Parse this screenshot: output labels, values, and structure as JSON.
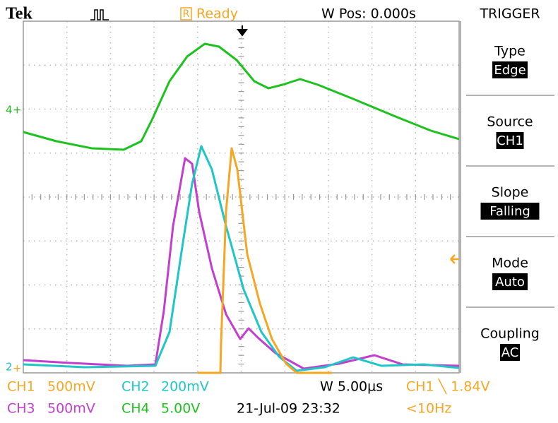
{
  "header": {
    "brand": "Tek",
    "status_flag": "R",
    "status": "Ready",
    "position": "W Pos: 0.000s"
  },
  "markers": {
    "ch4": "4",
    "ch2": "2"
  },
  "menu": {
    "title": "TRIGGER",
    "items": [
      {
        "label": "Type",
        "value": "Edge"
      },
      {
        "label": "Source",
        "value": "CH1"
      },
      {
        "label": "Slope",
        "value": "Falling"
      },
      {
        "label": "Mode",
        "value": "Auto"
      },
      {
        "label": "Coupling",
        "value": "AC"
      }
    ]
  },
  "footer": {
    "row1": [
      "CH1",
      "500mV",
      "CH2",
      "200mV",
      "W 5.00µs",
      "CH1 ╲ 1.84V"
    ],
    "row2": [
      "CH3",
      "500mV",
      "CH4",
      "5.00V",
      "21-Jul-09 23:32",
      "<10Hz"
    ]
  }
}
